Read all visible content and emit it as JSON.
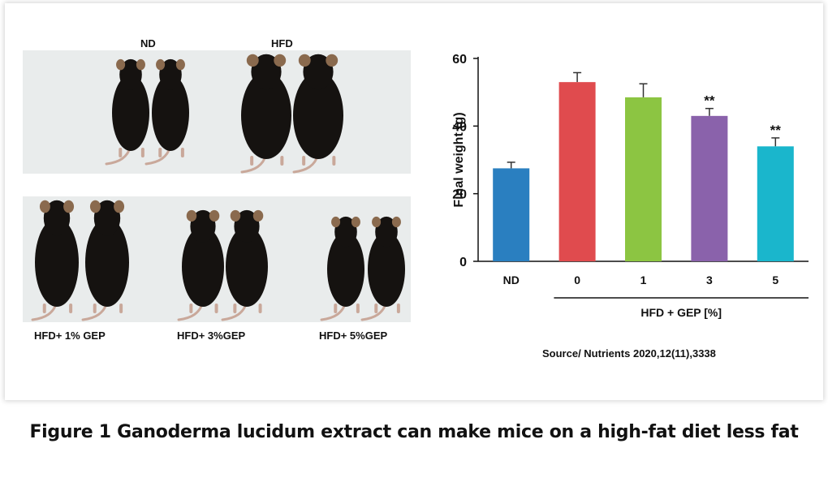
{
  "caption": "Figure 1 Ganoderma lucidum extract can make mice on a high-fat diet less fat",
  "source": "Source/ Nutrients 2020,12(11),3338",
  "photo_labels": {
    "nd": "ND",
    "hfd": "HFD",
    "gep1": "HFD+ 1% GEP",
    "gep3": "HFD+ 3%GEP",
    "gep5": "HFD+ 5%GEP"
  },
  "colors": {
    "photo_bg": "#e9ecec",
    "mouse": "#151210",
    "ear": "#8a6a4e"
  },
  "chart_data": {
    "type": "bar",
    "categories": [
      "ND",
      "0",
      "1",
      "3",
      "5"
    ],
    "values": [
      27.5,
      53,
      48.5,
      43,
      34
    ],
    "errors": [
      1.8,
      2.8,
      4,
      2.2,
      2.5
    ],
    "annotations": [
      "",
      "",
      "",
      "**",
      "**"
    ],
    "colors": [
      "#2a7fc0",
      "#e04b4e",
      "#8cc542",
      "#8a62ab",
      "#1ab6cc"
    ],
    "ylabel": "Final  weight (g)",
    "xlabel": "HFD + GEP [%]",
    "ylim": [
      0,
      60
    ],
    "yticks": [
      0,
      20,
      40,
      60
    ],
    "grid": false
  }
}
